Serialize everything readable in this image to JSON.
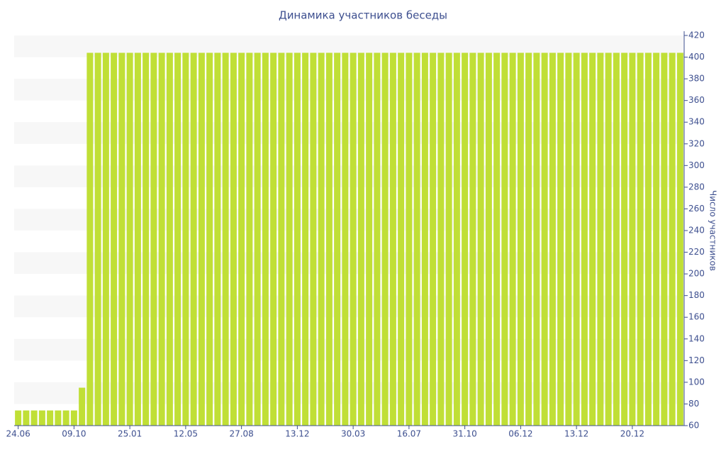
{
  "chart_data": {
    "type": "bar",
    "title": "Динамика участников беседы",
    "y_label": "Число участников",
    "categories": [
      "24.06",
      null,
      null,
      null,
      null,
      null,
      null,
      "09.10",
      null,
      null,
      null,
      null,
      null,
      null,
      "25.01",
      null,
      null,
      null,
      null,
      null,
      null,
      "12.05",
      null,
      null,
      null,
      null,
      null,
      null,
      "27.08",
      null,
      null,
      null,
      null,
      null,
      null,
      "13.12",
      null,
      null,
      null,
      null,
      null,
      null,
      "30.03",
      null,
      null,
      null,
      null,
      null,
      null,
      "16.07",
      null,
      null,
      null,
      null,
      null,
      null,
      "31.10",
      null,
      null,
      null,
      null,
      null,
      null,
      "06.12",
      null,
      null,
      null,
      null,
      null,
      null,
      "13.12",
      null,
      null,
      null,
      null,
      null,
      null,
      "20.12",
      null,
      null,
      null,
      null,
      null,
      null
    ],
    "values": [
      74,
      74,
      74,
      74,
      74,
      74,
      74,
      74,
      95,
      404,
      404,
      404,
      404,
      404,
      404,
      404,
      404,
      404,
      404,
      404,
      404,
      404,
      404,
      404,
      404,
      404,
      404,
      404,
      404,
      404,
      404,
      404,
      404,
      404,
      404,
      404,
      404,
      404,
      404,
      404,
      404,
      404,
      404,
      404,
      404,
      404,
      404,
      404,
      404,
      404,
      404,
      404,
      404,
      404,
      404,
      404,
      404,
      404,
      404,
      404,
      404,
      404,
      404,
      404,
      404,
      404,
      404,
      404,
      404,
      404,
      404,
      404,
      404,
      404,
      404,
      404,
      404,
      404,
      404,
      404,
      404,
      404,
      404,
      404
    ],
    "color": "#c0df36",
    "ylim": [
      60,
      420
    ],
    "yticks": [
      60,
      80,
      100,
      120,
      140,
      160,
      180,
      200,
      220,
      240,
      260,
      280,
      300,
      320,
      340,
      360,
      380,
      400,
      420
    ],
    "y_axis_side": "right",
    "alternate_bands": true
  }
}
